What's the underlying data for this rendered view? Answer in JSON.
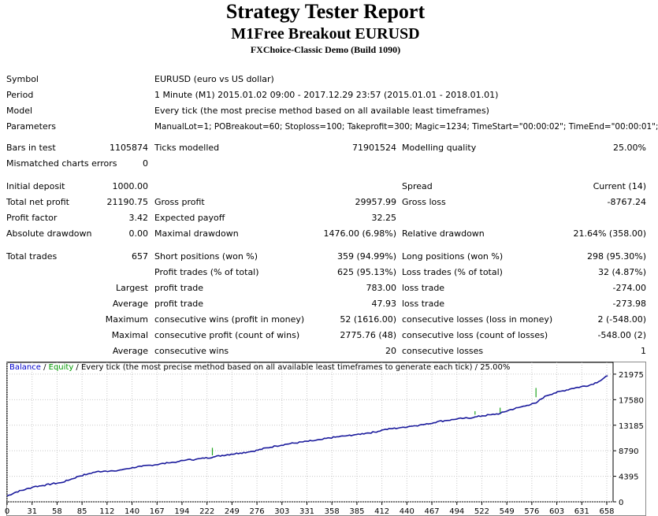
{
  "header": {
    "title": "Strategy Tester Report",
    "subtitle": "M1Free Breakout EURUSD",
    "server": "FXChoice-Classic Demo (Build 1090)"
  },
  "info": {
    "symbol_label": "Symbol",
    "symbol_value": "EURUSD (euro vs US dollar)",
    "period_label": "Period",
    "period_value": "1 Minute (M1) 2015.01.02 09:00 - 2017.12.29 23:57 (2015.01.01 - 2018.01.01)",
    "model_label": "Model",
    "model_value": "Every tick (the most precise method based on all available least timeframes)",
    "params_label": "Parameters",
    "params_value": "ManualLot=1; POBreakout=60; Stoploss=100; Takeprofit=300; Magic=1234; TimeStart=\"00:00:02\"; TimeEnd=\"00:00:01\";"
  },
  "stats": {
    "bars_label": "Bars in test",
    "bars_value": "1105874",
    "ticks_label": "Ticks modelled",
    "ticks_value": "71901524",
    "quality_label": "Modelling quality",
    "quality_value": "25.00%",
    "mismatch_label": "Mismatched charts errors",
    "mismatch_value": "0",
    "deposit_label": "Initial deposit",
    "deposit_value": "1000.00",
    "spread_label": "Spread",
    "spread_value": "Current (14)",
    "net_label": "Total net profit",
    "net_value": "21190.75",
    "gp_label": "Gross profit",
    "gp_value": "29957.99",
    "gl_label": "Gross loss",
    "gl_value": "-8767.24",
    "pf_label": "Profit factor",
    "pf_value": "3.42",
    "ep_label": "Expected payoff",
    "ep_value": "32.25",
    "ad_label": "Absolute drawdown",
    "ad_value": "0.00",
    "md_label": "Maximal drawdown",
    "md_value": "1476.00 (6.98%)",
    "rd_label": "Relative drawdown",
    "rd_value": "21.64% (358.00)",
    "tt_label": "Total trades",
    "tt_value": "657",
    "sp_label": "Short positions (won %)",
    "sp_value": "359 (94.99%)",
    "lp_label": "Long positions (won %)",
    "lp_value": "298 (95.30%)",
    "pt_label": "Profit trades (% of total)",
    "pt_value": "625 (95.13%)",
    "lt_label": "Loss trades (% of total)",
    "lt_value": "32 (4.87%)",
    "largest_label": "Largest",
    "lpt_label": "profit trade",
    "lpt_value": "783.00",
    "llt_label": "loss trade",
    "llt_value": "-274.00",
    "average_label": "Average",
    "apt_label": "profit trade",
    "apt_value": "47.93",
    "alt_label": "loss trade",
    "alt_value": "-273.98",
    "maximum_label": "Maximum",
    "mcw_label": "consecutive wins (profit in money)",
    "mcw_value": "52 (1616.00)",
    "mcl_label": "consecutive losses (loss in money)",
    "mcl_value": "2 (-548.00)",
    "maximal_label": "Maximal",
    "mcp_label": "consecutive profit (count of wins)",
    "mcp_value": "2775.76 (48)",
    "mcls_label": "consecutive loss (count of losses)",
    "mcls_value": "-548.00 (2)",
    "average2_label": "Average",
    "acw_label": "consecutive wins",
    "acw_value": "20",
    "acl_label": "consecutive losses",
    "acl_value": "1"
  },
  "chart_data": {
    "type": "line",
    "legend": {
      "balance": "Balance",
      "sep1": " / ",
      "equity": "Equity",
      "rest": " / Every tick (the most precise method based on all available least timeframes to generate each tick) / 25.00%"
    },
    "x_ticks": [
      "0",
      "31",
      "58",
      "85",
      "112",
      "140",
      "167",
      "194",
      "222",
      "249",
      "276",
      "303",
      "331",
      "358",
      "385",
      "412",
      "440",
      "467",
      "494",
      "522",
      "549",
      "576",
      "603",
      "631",
      "658"
    ],
    "y_ticks": [
      "21975",
      "17580",
      "13185",
      "8790",
      "4395",
      "0"
    ],
    "xlim": [
      0,
      676
    ],
    "ylim": [
      0,
      24000
    ],
    "colors": {
      "balance": "#1a1a9c",
      "equity": "#1fa51f",
      "legend_balance": "#0000cc",
      "legend_equity": "#009900"
    },
    "series": [
      {
        "name": "Balance",
        "x": [
          0,
          10,
          20,
          30,
          40,
          50,
          60,
          70,
          80,
          90,
          100,
          110,
          120,
          130,
          140,
          150,
          160,
          170,
          180,
          190,
          200,
          210,
          220,
          230,
          240,
          250,
          260,
          270,
          280,
          290,
          300,
          310,
          320,
          330,
          340,
          350,
          360,
          370,
          380,
          390,
          400,
          410,
          420,
          430,
          440,
          450,
          460,
          470,
          480,
          490,
          500,
          510,
          520,
          530,
          540,
          550,
          560,
          570,
          580,
          590,
          600,
          610,
          620,
          630,
          640,
          650,
          660,
          670
        ],
        "y": [
          1000,
          1700,
          2100,
          2600,
          2800,
          3100,
          3300,
          3800,
          4400,
          4800,
          5200,
          5300,
          5300,
          5600,
          5900,
          6100,
          6300,
          6500,
          6700,
          6900,
          7200,
          7300,
          7500,
          7700,
          8000,
          8200,
          8400,
          8600,
          8900,
          9300,
          9600,
          9900,
          10100,
          10300,
          10500,
          10700,
          11000,
          11200,
          11400,
          11600,
          11800,
          12000,
          12400,
          12600,
          12800,
          13000,
          13200,
          13400,
          13800,
          14000,
          14200,
          14400,
          14500,
          14800,
          15000,
          15200,
          15800,
          16200,
          16600,
          17000,
          18200,
          18700,
          19100,
          19500,
          19800,
          20100,
          20700,
          21700
        ]
      },
      {
        "name": "Equity",
        "spikes": [
          [
            229,
            8000,
            9300
          ],
          [
            522,
            15000,
            15600
          ],
          [
            550,
            15300,
            16200
          ],
          [
            590,
            18000,
            19600
          ]
        ]
      }
    ]
  }
}
